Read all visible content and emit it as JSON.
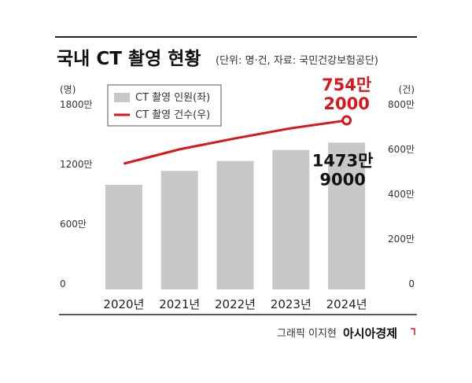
{
  "chart_data": {
    "type": "bar-line",
    "title": "국내 CT 촬영 현황",
    "subtitle": "(단위: 명·건, 자료: 국민건강보험공단)",
    "y_label": "(명)",
    "y2_label": "(건)",
    "categories": [
      "2020년",
      "2021년",
      "2022년",
      "2023년",
      "2024년"
    ],
    "series": [
      {
        "name": "CT 촬영 인원(좌)",
        "type": "bar",
        "color": "#c8c8c8",
        "axis": "y",
        "values": [
          10500000,
          11900000,
          12900000,
          14000000,
          14739000
        ],
        "value_labels": [
          null,
          null,
          null,
          null,
          "1473만 9000"
        ]
      },
      {
        "name": "CT 촬영 건수(우)",
        "type": "line",
        "color": "#d9161c",
        "axis": "y2",
        "values": [
          5610000,
          6250000,
          6740000,
          7190000,
          7542000
        ],
        "value_labels": [
          null,
          null,
          null,
          null,
          "754만 2000"
        ]
      }
    ],
    "ylim": [
      0,
      18000000
    ],
    "yticks": [
      0,
      {
        "value": 6000000,
        "label": "600만"
      },
      {
        "value": 12000000,
        "label": "1200만"
      },
      {
        "value": 18000000,
        "label": "1800만"
      }
    ],
    "y2lim": [
      0,
      8000000
    ],
    "y2ticks": [
      0,
      {
        "value": 2000000,
        "label": "200만"
      },
      {
        "value": 4000000,
        "label": "400만"
      },
      {
        "value": 6000000,
        "label": "600만"
      },
      {
        "value": 8000000,
        "label": "800만"
      }
    ],
    "grid": false,
    "credit": "그래픽 이지현",
    "source_logo": "아시아경제"
  }
}
